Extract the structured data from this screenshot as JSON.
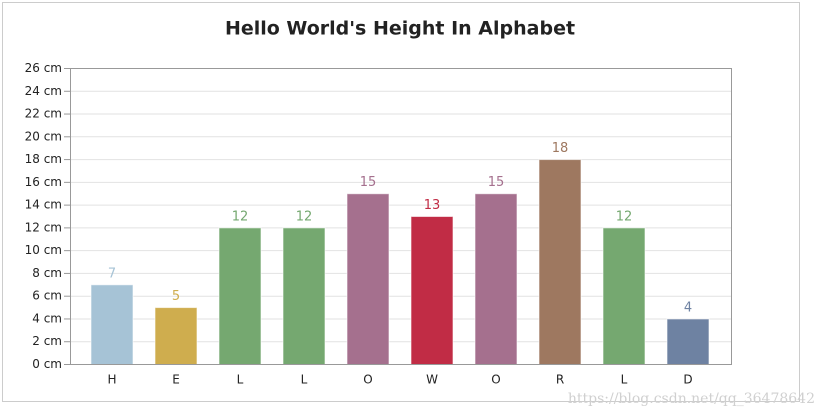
{
  "chart_data": {
    "type": "bar",
    "title": "Hello World's Height In Alphabet",
    "categories": [
      "H",
      "E",
      "L",
      "L",
      "O",
      "W",
      "O",
      "R",
      "L",
      "D"
    ],
    "values": [
      7,
      5,
      12,
      12,
      15,
      13,
      15,
      18,
      12,
      4
    ],
    "colors": [
      "#a6c3d6",
      "#cfad4e",
      "#75a870",
      "#75a870",
      "#a5708e",
      "#c12c45",
      "#a5708e",
      "#9e7860",
      "#75a870",
      "#6e82a2"
    ],
    "ylim": [
      0,
      26
    ],
    "yticks": [
      {
        "value": 0,
        "label": "0 cm"
      },
      {
        "value": 2,
        "label": "2 cm"
      },
      {
        "value": 4,
        "label": "4 cm"
      },
      {
        "value": 6,
        "label": "6 cm"
      },
      {
        "value": 8,
        "label": "8 cm"
      },
      {
        "value": 10,
        "label": "10 cm"
      },
      {
        "value": 12,
        "label": "12 cm"
      },
      {
        "value": 14,
        "label": "14 cm"
      },
      {
        "value": 16,
        "label": "16 cm"
      },
      {
        "value": 18,
        "label": "18 cm"
      },
      {
        "value": 20,
        "label": "20 cm"
      },
      {
        "value": 22,
        "label": "22 cm"
      },
      {
        "value": 24,
        "label": "24 cm"
      },
      {
        "value": 26,
        "label": "26 cm"
      }
    ],
    "grid": true,
    "watermark": "https://blog.csdn.net/qq_36478642"
  }
}
